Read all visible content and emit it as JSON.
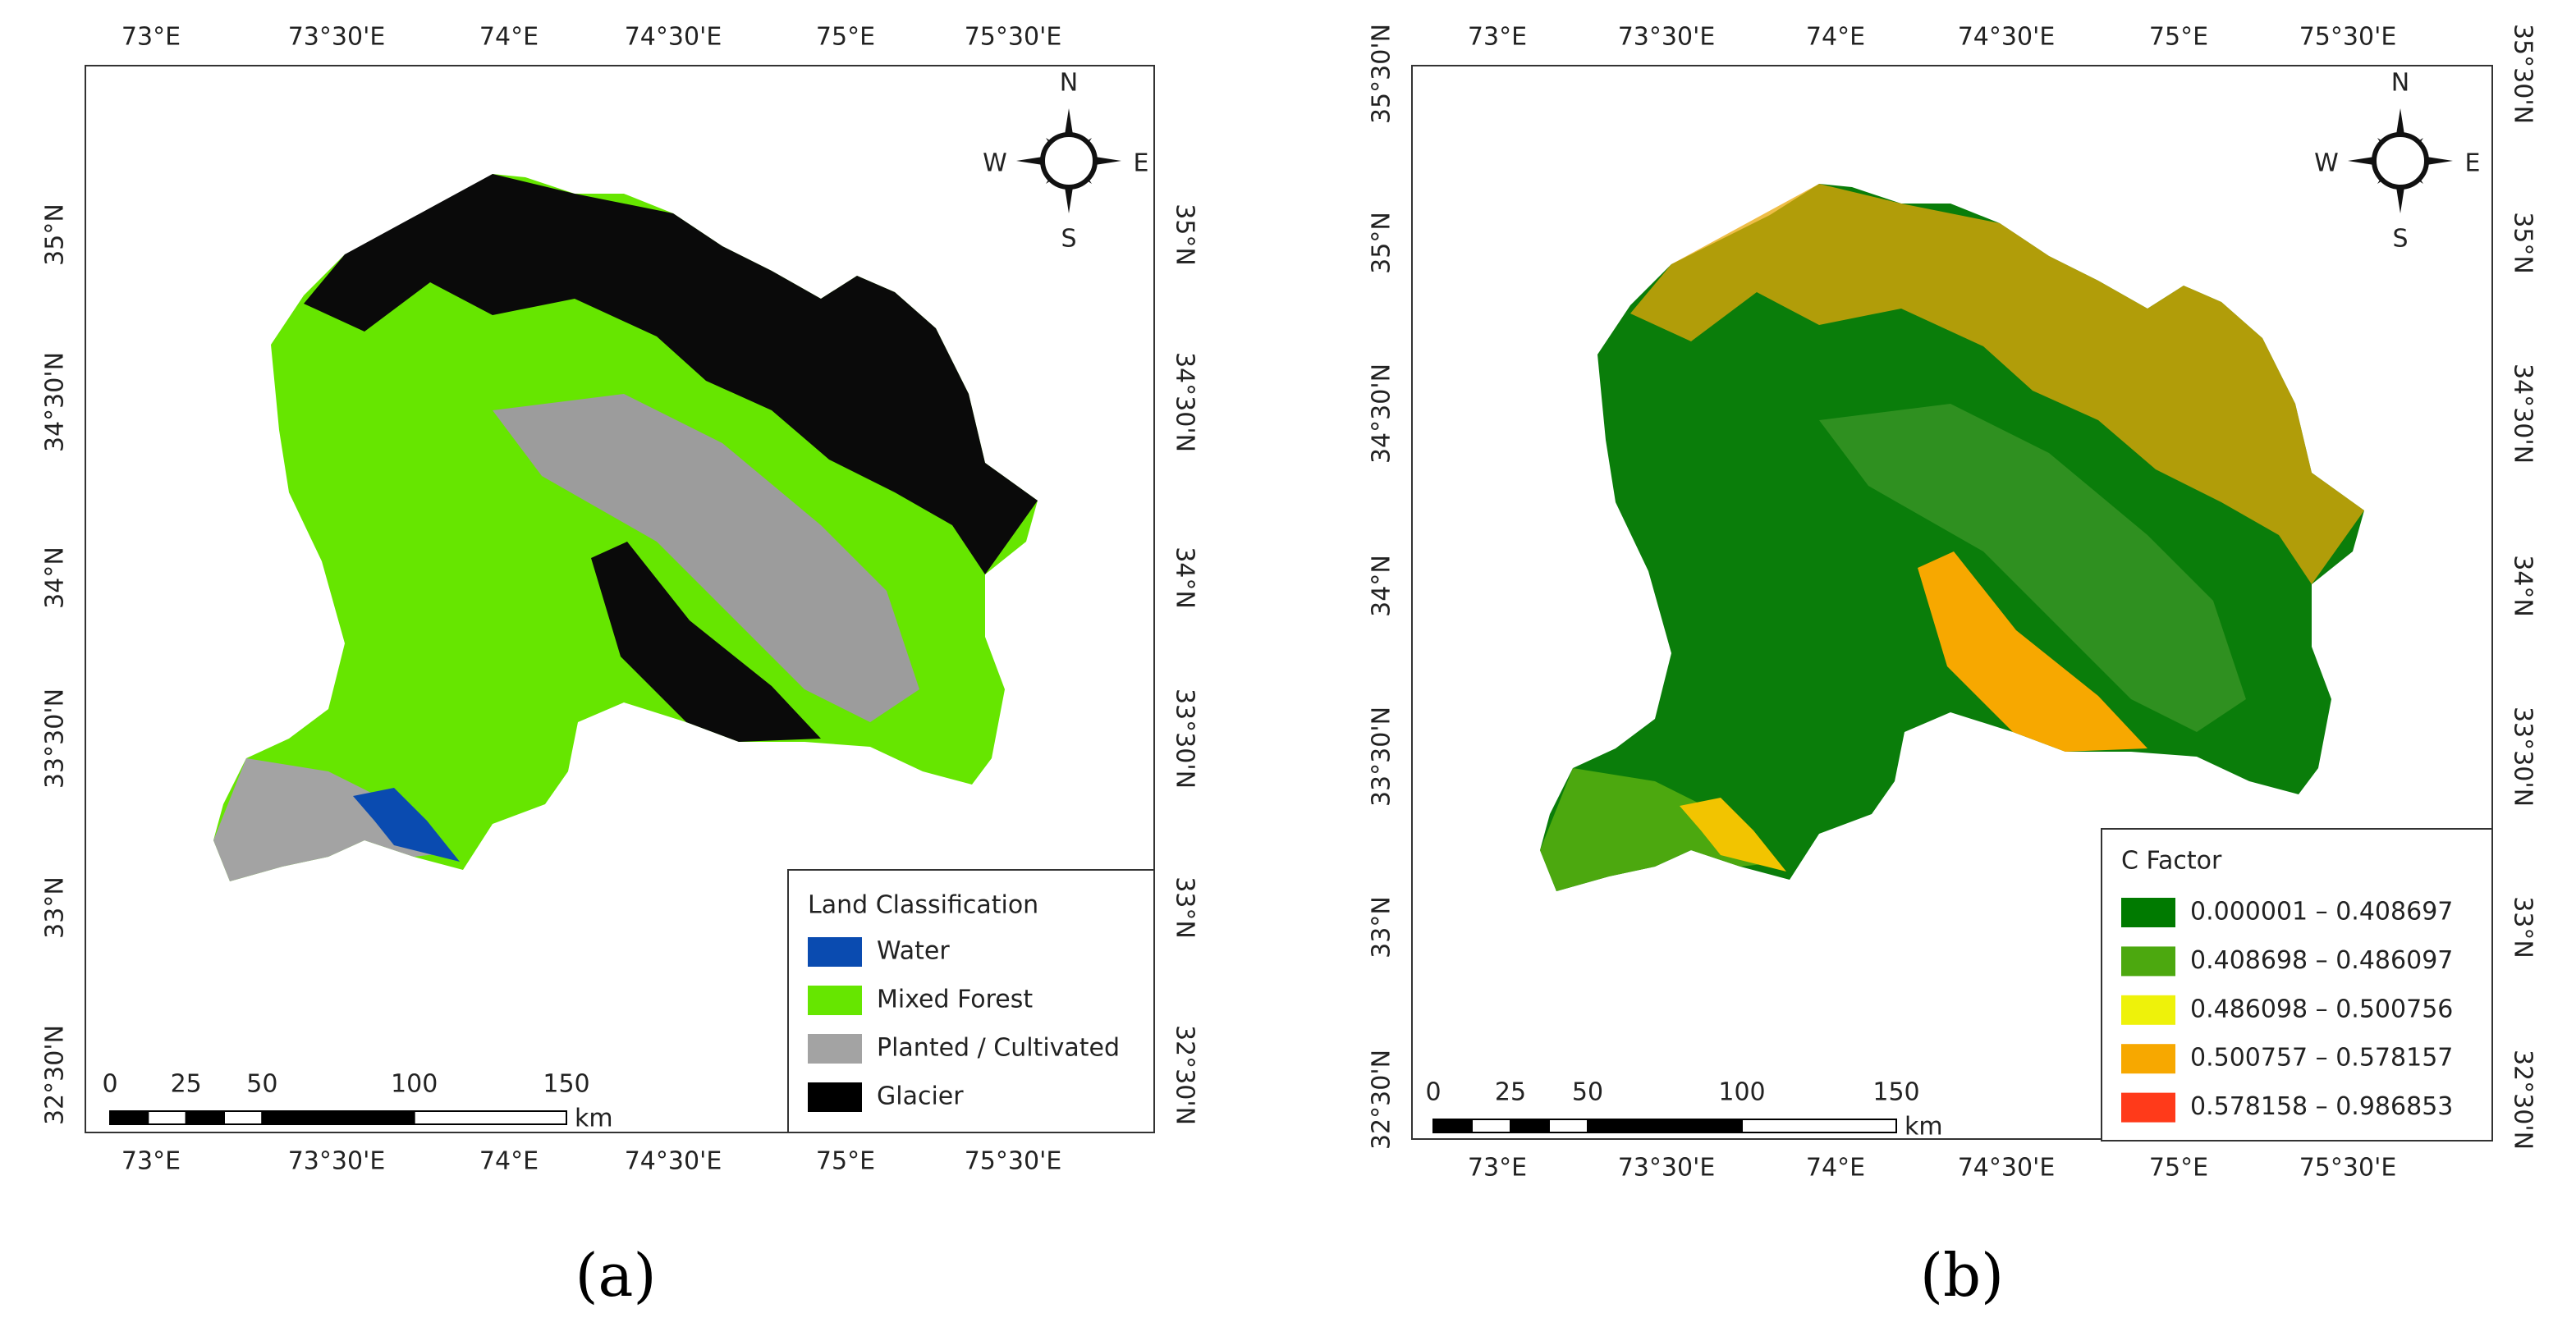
{
  "panels": [
    {
      "caption": "(a)",
      "x_labels": [
        "73°E",
        "73°30'E",
        "74°E",
        "74°30'E",
        "75°E",
        "75°30'E"
      ],
      "y_labels": [
        "35°N",
        "34°30'N",
        "34°N",
        "33°30'N",
        "33°N",
        "32°30'N"
      ],
      "compass": {
        "n": "N",
        "e": "E",
        "s": "S",
        "w": "W"
      },
      "scale_bar": {
        "ticks": [
          0,
          25,
          50,
          100,
          150
        ],
        "unit": "km"
      },
      "legend": {
        "title": "Land Classification",
        "items": [
          {
            "label": "Water",
            "color": "#0a4bb0"
          },
          {
            "label": "Mixed Forest",
            "color": "#66e600"
          },
          {
            "label": "Planted / Cultivated",
            "color": "#a3a3a3"
          },
          {
            "label": "Glacier",
            "color": "#000000"
          }
        ]
      }
    },
    {
      "caption": "(b)",
      "x_labels": [
        "73°E",
        "73°30'E",
        "74°E",
        "74°30'E",
        "75°E",
        "75°30'E"
      ],
      "y_labels": [
        "35°30'N",
        "35°N",
        "34°30'N",
        "34°N",
        "33°30'N",
        "33°N",
        "32°30'N"
      ],
      "compass": {
        "n": "N",
        "e": "E",
        "s": "S",
        "w": "W"
      },
      "scale_bar": {
        "ticks": [
          0,
          25,
          50,
          100,
          150
        ],
        "unit": "km"
      },
      "legend": {
        "title": "C Factor",
        "items": [
          {
            "label": "0.000001 – 0.408697",
            "color": "#007a00"
          },
          {
            "label": "0.408698 – 0.486097",
            "color": "#4ca80f"
          },
          {
            "label": "0.486098 – 0.500756",
            "color": "#eef20a"
          },
          {
            "label": "0.500757 – 0.578157",
            "color": "#f7a800"
          },
          {
            "label": "0.578158 – 0.986853",
            "color": "#ff3a1a"
          }
        ]
      }
    }
  ]
}
